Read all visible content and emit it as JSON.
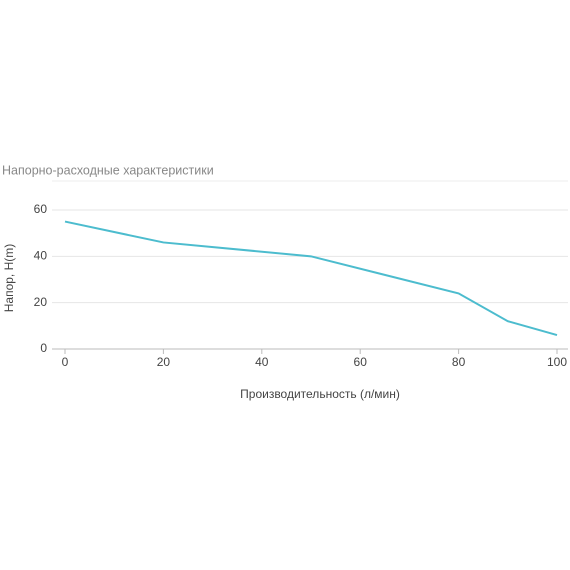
{
  "chart_data": {
    "type": "line",
    "title": "Напорно-расходные характеристики",
    "x_label": "Производительность (л/мин)",
    "y_label": "Напор, H(m)",
    "x": [
      0,
      20,
      50,
      80,
      90,
      100
    ],
    "series": [
      {
        "name": "Напор",
        "color": "#4cbcce",
        "values": [
          55,
          46,
          40,
          24,
          12,
          6
        ]
      }
    ],
    "xlim": [
      0,
      100
    ],
    "xticks": [
      0,
      20,
      40,
      60,
      80,
      100
    ],
    "ylim": [
      0,
      60
    ],
    "yticks": [
      0,
      20,
      40,
      60
    ],
    "grid": true
  }
}
